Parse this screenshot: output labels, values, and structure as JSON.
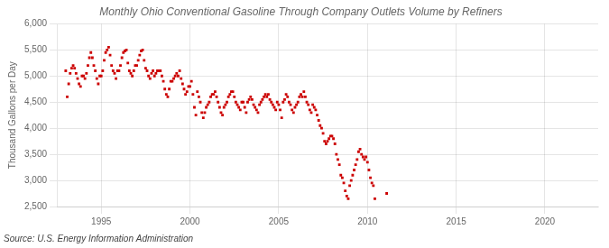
{
  "chart_data": {
    "type": "scatter",
    "title": "Monthly Ohio Conventional Gasoline Through Company Outlets Volume by Refiners",
    "ylabel": "Thousand Gallons per Day",
    "annotations": [
      "Source: U.S. Energy Information Administration"
    ],
    "color": "#CC0000",
    "marker": "square",
    "grid": true,
    "xlim": [
      1992.5,
      2023.0
    ],
    "xticks": [
      1995,
      2000,
      2005,
      2010,
      2015,
      2020
    ],
    "ylim": [
      2500,
      6000
    ],
    "yticks": [
      {
        "value": 2500,
        "label": "2,500"
      },
      {
        "value": 3000,
        "label": "3,000"
      },
      {
        "value": 3500,
        "label": "3,500"
      },
      {
        "value": 4000,
        "label": "4,000"
      },
      {
        "value": 4500,
        "label": "4,500"
      },
      {
        "value": 5000,
        "label": "5,000"
      },
      {
        "value": 5500,
        "label": "5,500"
      },
      {
        "value": 6000,
        "label": "6,000"
      }
    ],
    "x": [
      1993.0,
      1993.083,
      1993.167,
      1993.25,
      1993.333,
      1993.417,
      1993.5,
      1993.583,
      1993.667,
      1993.75,
      1993.833,
      1993.917,
      1994.0,
      1994.083,
      1994.167,
      1994.25,
      1994.333,
      1994.417,
      1994.5,
      1994.583,
      1994.667,
      1994.75,
      1994.833,
      1994.917,
      1995.0,
      1995.083,
      1995.167,
      1995.25,
      1995.333,
      1995.417,
      1995.5,
      1995.583,
      1995.667,
      1995.75,
      1995.833,
      1995.917,
      1996.0,
      1996.083,
      1996.167,
      1996.25,
      1996.333,
      1996.417,
      1996.5,
      1996.583,
      1996.667,
      1996.75,
      1996.833,
      1996.917,
      1997.0,
      1997.083,
      1997.167,
      1997.25,
      1997.333,
      1997.417,
      1997.5,
      1997.583,
      1997.667,
      1997.75,
      1997.833,
      1997.917,
      1998.0,
      1998.083,
      1998.167,
      1998.25,
      1998.333,
      1998.417,
      1998.5,
      1998.583,
      1998.667,
      1998.75,
      1998.833,
      1998.917,
      1999.0,
      1999.083,
      1999.167,
      1999.25,
      1999.333,
      1999.417,
      1999.5,
      1999.583,
      1999.667,
      1999.75,
      1999.833,
      1999.917,
      2000.0,
      2000.083,
      2000.167,
      2000.25,
      2000.333,
      2000.417,
      2000.5,
      2000.583,
      2000.667,
      2000.75,
      2000.833,
      2000.917,
      2001.0,
      2001.083,
      2001.167,
      2001.25,
      2001.333,
      2001.417,
      2001.5,
      2001.583,
      2001.667,
      2001.75,
      2001.833,
      2001.917,
      2002.0,
      2002.083,
      2002.167,
      2002.25,
      2002.333,
      2002.417,
      2002.5,
      2002.583,
      2002.667,
      2002.75,
      2002.833,
      2002.917,
      2003.0,
      2003.083,
      2003.167,
      2003.25,
      2003.333,
      2003.417,
      2003.5,
      2003.583,
      2003.667,
      2003.75,
      2003.833,
      2003.917,
      2004.0,
      2004.083,
      2004.167,
      2004.25,
      2004.333,
      2004.417,
      2004.5,
      2004.583,
      2004.667,
      2004.75,
      2004.833,
      2004.917,
      2005.0,
      2005.083,
      2005.167,
      2005.25,
      2005.333,
      2005.417,
      2005.5,
      2005.583,
      2005.667,
      2005.75,
      2005.833,
      2005.917,
      2006.0,
      2006.083,
      2006.167,
      2006.25,
      2006.333,
      2006.417,
      2006.5,
      2006.583,
      2006.667,
      2006.75,
      2006.833,
      2006.917,
      2007.0,
      2007.083,
      2007.167,
      2007.25,
      2007.333,
      2007.417,
      2007.5,
      2007.583,
      2007.667,
      2007.75,
      2007.833,
      2007.917,
      2008.0,
      2008.083,
      2008.167,
      2008.25,
      2008.333,
      2008.417,
      2008.5,
      2008.583,
      2008.667,
      2008.75,
      2008.833,
      2008.917,
      2009.0,
      2009.083,
      2009.167,
      2009.25,
      2009.333,
      2009.417,
      2009.5,
      2009.583,
      2009.667,
      2009.75,
      2009.833,
      2009.917,
      2010.0,
      2010.083,
      2010.167,
      2010.25,
      2010.333,
      2010.417,
      2011.083
    ],
    "values": [
      5100,
      4600,
      4850,
      5050,
      5150,
      5200,
      5150,
      5050,
      4950,
      4850,
      4800,
      5000,
      5000,
      4950,
      5050,
      5200,
      5350,
      5450,
      5350,
      5200,
      5100,
      4950,
      4850,
      5000,
      5000,
      5100,
      5300,
      5450,
      5500,
      5550,
      5400,
      5200,
      5100,
      5050,
      4950,
      5100,
      5100,
      5200,
      5350,
      5450,
      5480,
      5500,
      5250,
      5100,
      5050,
      5000,
      5100,
      5200,
      5200,
      5300,
      5400,
      5480,
      5500,
      5300,
      5150,
      5100,
      5000,
      4950,
      5050,
      5100,
      5000,
      5050,
      5100,
      5100,
      5100,
      5000,
      4900,
      4750,
      4650,
      4600,
      4750,
      4900,
      4900,
      4950,
      5000,
      5050,
      5000,
      5100,
      4950,
      4850,
      4750,
      4650,
      4700,
      4800,
      4800,
      4900,
      4650,
      4400,
      4250,
      4700,
      4600,
      4500,
      4300,
      4200,
      4300,
      4400,
      4450,
      4500,
      4600,
      4650,
      4650,
      4700,
      4600,
      4500,
      4400,
      4300,
      4250,
      4400,
      4450,
      4500,
      4600,
      4650,
      4700,
      4700,
      4600,
      4500,
      4450,
      4400,
      4350,
      4500,
      4500,
      4400,
      4300,
      4500,
      4550,
      4600,
      4550,
      4450,
      4400,
      4350,
      4300,
      4450,
      4500,
      4550,
      4600,
      4650,
      4600,
      4650,
      4550,
      4500,
      4450,
      4400,
      4350,
      4500,
      4450,
      4350,
      4200,
      4500,
      4550,
      4650,
      4600,
      4500,
      4450,
      4350,
      4300,
      4400,
      4450,
      4500,
      4600,
      4650,
      4600,
      4700,
      4600,
      4500,
      4450,
      4350,
      4300,
      4450,
      4400,
      4350,
      4250,
      4150,
      4050,
      4000,
      3900,
      3750,
      3700,
      3750,
      3800,
      3850,
      3850,
      3800,
      3700,
      3500,
      3400,
      3300,
      3100,
      3050,
      2950,
      2800,
      2700,
      2650,
      2900,
      3000,
      3100,
      3200,
      3300,
      3400,
      3550,
      3600,
      3500,
      3450,
      3400,
      3450,
      3350,
      3200,
      3050,
      2950,
      2900,
      2650,
      2750
    ]
  }
}
